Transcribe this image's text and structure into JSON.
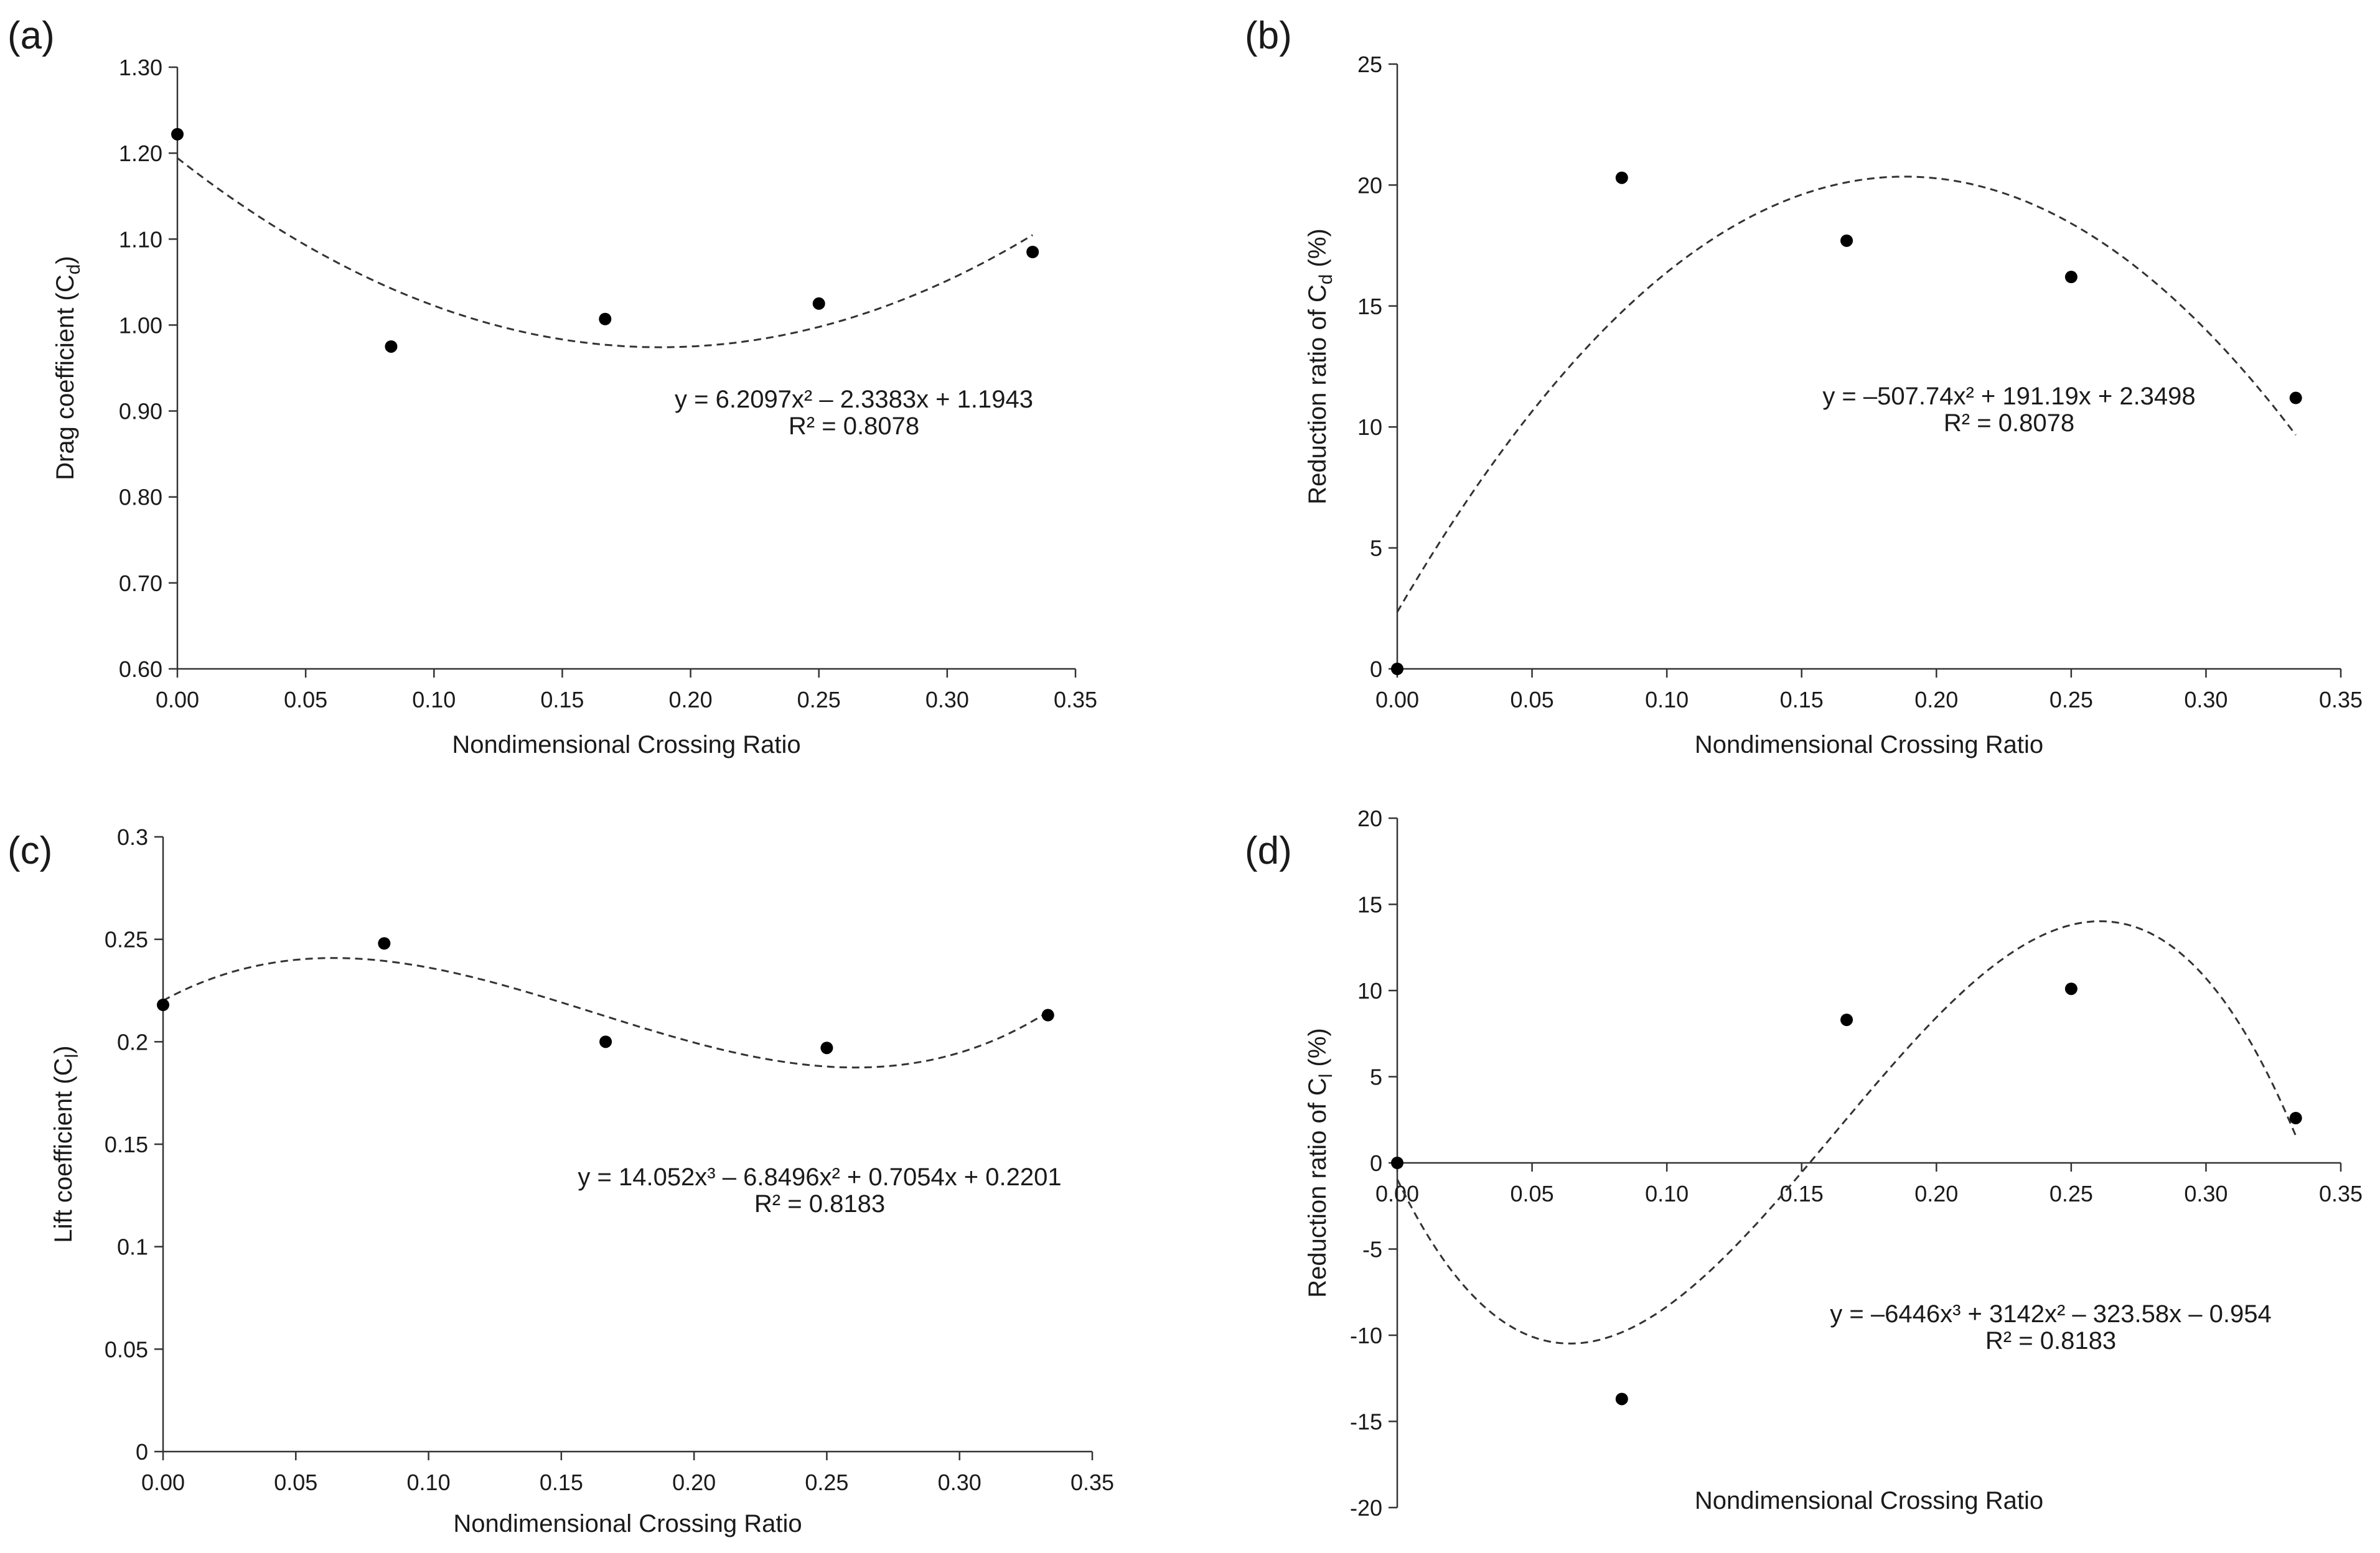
{
  "chart_data": [
    {
      "panel": "(a)",
      "type": "scatter",
      "x": [
        0.0,
        0.0833,
        0.1667,
        0.25,
        0.3333
      ],
      "y": [
        1.222,
        0.975,
        1.007,
        1.025,
        1.085
      ],
      "xlabel": "Nondimensional Crossing Ratio",
      "ylabel": "Drag coefficient (Cd)",
      "ylabel_main": "Drag coefficient (C",
      "ylabel_sub": "d",
      "ylabel_close": ")",
      "xlim": [
        0,
        0.35
      ],
      "ylim": [
        0.6,
        1.3
      ],
      "xticks": [
        0,
        0.05,
        0.1,
        0.15,
        0.2,
        0.25,
        0.3,
        0.35
      ],
      "xtick_labels": [
        "0.00",
        "0.05",
        "0.10",
        "0.15",
        "0.20",
        "0.25",
        "0.30",
        "0.35"
      ],
      "yticks": [
        0.6,
        0.7,
        0.8,
        0.9,
        1.0,
        1.1,
        1.2,
        1.3
      ],
      "ytick_labels": [
        "0.60",
        "0.70",
        "0.80",
        "0.90",
        "1.00",
        "1.10",
        "1.20",
        "1.30"
      ],
      "xaxis_at": 0.6,
      "trend_coeffs": [
        1.1943,
        -2.3383,
        6.2097
      ],
      "equation": "y = 6.2097x² – 2.3383x + 1.1943",
      "r2": "R² = 0.8078"
    },
    {
      "panel": "(b)",
      "type": "scatter",
      "x": [
        0.0,
        0.0833,
        0.1667,
        0.25,
        0.3333
      ],
      "y": [
        0.0,
        20.3,
        17.7,
        16.2,
        11.2
      ],
      "xlabel": "Nondimensional Crossing Ratio",
      "ylabel": "Reduction ratio of Cd (%)",
      "ylabel_main": "Reduction ratio of C",
      "ylabel_sub": "d",
      "ylabel_close": " (%)",
      "xlim": [
        0,
        0.35
      ],
      "ylim": [
        0,
        25
      ],
      "xticks": [
        0,
        0.05,
        0.1,
        0.15,
        0.2,
        0.25,
        0.3,
        0.35
      ],
      "xtick_labels": [
        "0.00",
        "0.05",
        "0.10",
        "0.15",
        "0.20",
        "0.25",
        "0.30",
        "0.35"
      ],
      "yticks": [
        0,
        5,
        10,
        15,
        20,
        25
      ],
      "ytick_labels": [
        "0",
        "5",
        "10",
        "15",
        "20",
        "25"
      ],
      "xaxis_at": 0,
      "trend_coeffs": [
        2.3498,
        191.19,
        -507.74
      ],
      "equation": "y = –507.74x² + 191.19x + 2.3498",
      "r2": "R² = 0.8078"
    },
    {
      "panel": "(c)",
      "type": "scatter",
      "x": [
        0.0,
        0.0833,
        0.1667,
        0.25,
        0.3333
      ],
      "y": [
        0.218,
        0.248,
        0.2,
        0.197,
        0.213
      ],
      "xlabel": "Nondimensional Crossing Ratio",
      "ylabel": "Lift coefficient (Cl)",
      "ylabel_main": "Lift coefficient (C",
      "ylabel_sub": "l",
      "ylabel_close": ")",
      "xlim": [
        0,
        0.35
      ],
      "ylim": [
        0,
        0.3
      ],
      "xticks": [
        0,
        0.05,
        0.1,
        0.15,
        0.2,
        0.25,
        0.3,
        0.35
      ],
      "xtick_labels": [
        "0.00",
        "0.05",
        "0.10",
        "0.15",
        "0.20",
        "0.25",
        "0.30",
        "0.35"
      ],
      "yticks": [
        0,
        0.05,
        0.1,
        0.15,
        0.2,
        0.25,
        0.3
      ],
      "ytick_labels": [
        "0",
        "0.05",
        "0.1",
        "0.15",
        "0.2",
        "0.25",
        "0.3"
      ],
      "xaxis_at": 0,
      "trend_coeffs": [
        0.2201,
        0.7054,
        -6.8496,
        14.052
      ],
      "equation": "y = 14.052x³ – 6.8496x² + 0.7054x + 0.2201",
      "r2": "R² = 0.8183"
    },
    {
      "panel": "(d)",
      "type": "scatter",
      "x": [
        0.0,
        0.0833,
        0.1667,
        0.25,
        0.3333
      ],
      "y": [
        0.0,
        -13.7,
        8.3,
        10.1,
        2.6
      ],
      "xlabel": "Nondimensional Crossing Ratio",
      "ylabel": "Reduction ratio of Cl (%)",
      "ylabel_main": "Reduction ratio of C",
      "ylabel_sub": "l",
      "ylabel_close": " (%)",
      "xlim": [
        0,
        0.35
      ],
      "ylim": [
        -20,
        20
      ],
      "xticks": [
        0,
        0.05,
        0.1,
        0.15,
        0.2,
        0.25,
        0.3,
        0.35
      ],
      "xtick_labels": [
        "0.00",
        "0.05",
        "0.10",
        "0.15",
        "0.20",
        "0.25",
        "0.30",
        "0.35"
      ],
      "yticks": [
        -20,
        -15,
        -10,
        -5,
        0,
        5,
        10,
        15,
        20
      ],
      "ytick_labels": [
        "-20",
        "-15",
        "-10",
        "-5",
        "0",
        "5",
        "10",
        "15",
        "20"
      ],
      "xaxis_at": 0,
      "trend_coeffs": [
        -0.954,
        -323.58,
        3142,
        -6446
      ],
      "equation": "y = –6446x³ + 3142x² – 323.58x – 0.954",
      "r2": "R² = 0.8183"
    }
  ]
}
